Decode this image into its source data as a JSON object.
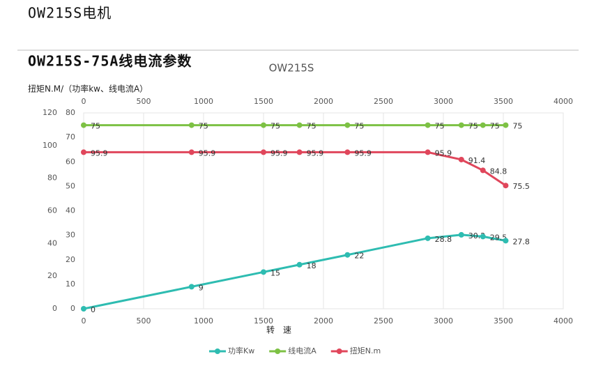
{
  "header": {
    "title": "OW215S电机",
    "subtitle": "OW215S-75A线电流参数"
  },
  "chart_data": {
    "type": "line",
    "title": "OW215S",
    "ylabel": "扭矩N.M/（功率kw、线电流A）",
    "xlabel": "转　速",
    "x": [
      0,
      900,
      1500,
      1800,
      2200,
      2870,
      3150,
      3330,
      3520
    ],
    "xlim": [
      0,
      4000
    ],
    "xticks": [
      0,
      500,
      1000,
      1500,
      2000,
      2500,
      3000,
      3500,
      4000
    ],
    "ylim": [
      0,
      120
    ],
    "yticks": [
      0,
      20,
      40,
      60,
      80,
      100,
      120
    ],
    "y2lim": [
      0,
      80
    ],
    "y2ticks": [
      0,
      10,
      20,
      30,
      40,
      50,
      60,
      70,
      80
    ],
    "grid": true,
    "legend": "bottom",
    "series": [
      {
        "name": "功率Kw",
        "color": "#2ebcb1",
        "axis": "y2",
        "values": [
          0,
          9,
          15,
          18,
          22,
          28.8,
          30.2,
          29.5,
          27.8
        ]
      },
      {
        "name": "线电流A",
        "color": "#7dc144",
        "axis": "y2",
        "values": [
          75,
          75,
          75,
          75,
          75,
          75,
          75,
          75,
          75
        ]
      },
      {
        "name": "扭矩N.m",
        "color": "#e0465b",
        "values": [
          95.9,
          95.9,
          95.9,
          95.9,
          95.9,
          95.9,
          91.4,
          84.8,
          75.5
        ]
      }
    ]
  }
}
